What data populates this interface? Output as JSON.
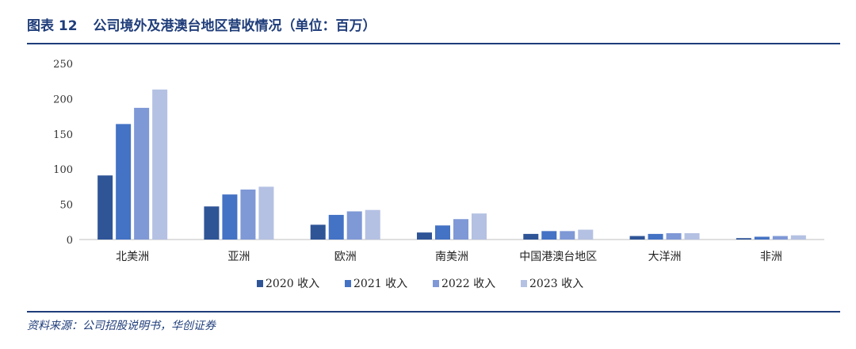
{
  "header": {
    "figure_no": "图表 12",
    "title": "公司境外及港澳台地区营收情况（单位：百万）"
  },
  "source": "资料来源：公司招股说明书，华创证券",
  "chart_data": {
    "type": "bar",
    "categories": [
      "北美洲",
      "亚洲",
      "欧洲",
      "南美洲",
      "中国港澳台地区",
      "大洋洲",
      "非洲"
    ],
    "series": [
      {
        "name": "2020 收入",
        "color": "#2f5597",
        "values": [
          91,
          47,
          21,
          10,
          8,
          5,
          2
        ]
      },
      {
        "name": "2021 收入",
        "color": "#4472c4",
        "values": [
          164,
          64,
          35,
          20,
          12,
          8,
          4
        ]
      },
      {
        "name": "2022 收入",
        "color": "#7f98d6",
        "values": [
          187,
          71,
          40,
          29,
          12,
          9,
          5
        ]
      },
      {
        "name": "2023 收入",
        "color": "#b4c1e3",
        "values": [
          213,
          75,
          42,
          37,
          14,
          9,
          6
        ]
      }
    ],
    "ylim": [
      0,
      250
    ],
    "yticks": [
      0,
      50,
      100,
      150,
      200,
      250
    ],
    "grid": false,
    "legend": "bottom"
  }
}
